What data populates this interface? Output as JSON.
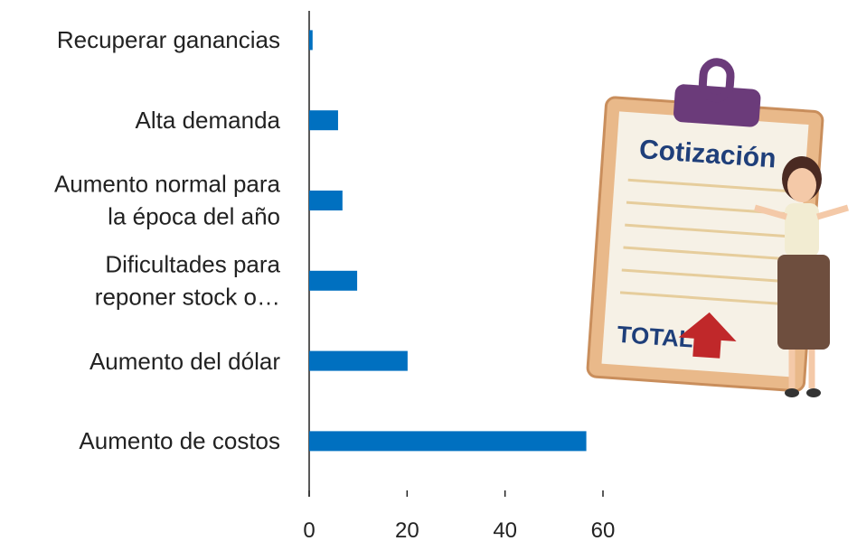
{
  "chart_data": {
    "type": "barh",
    "categories": [
      "Recuperar ganancias",
      "Alta demanda",
      "Aumento normal para\nla época del año",
      "Dificultades para\nreponer stock o…",
      "Aumento del dólar",
      "Aumento de costos"
    ],
    "values": [
      0.7,
      5.9,
      6.8,
      9.8,
      20.1,
      56.6
    ],
    "color": "#0070c0",
    "xlim": [
      0,
      60
    ],
    "xticks": [
      0,
      20,
      40,
      60
    ],
    "annotations": [
      "Cotización",
      "TOTAL"
    ]
  }
}
